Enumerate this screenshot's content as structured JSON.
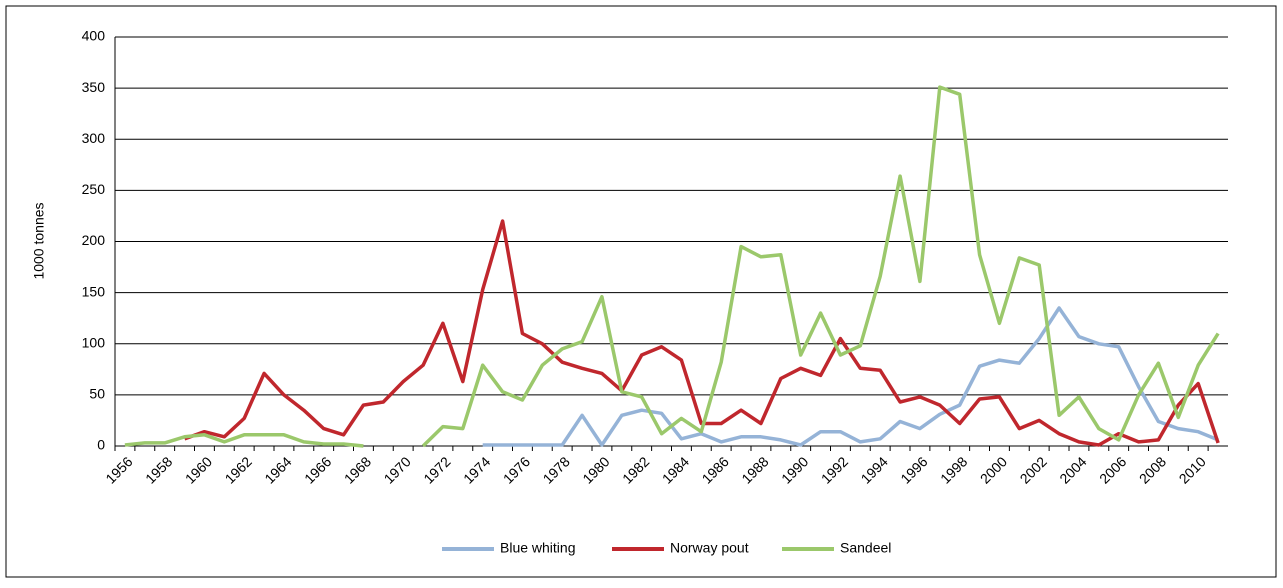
{
  "chart_data": {
    "type": "line",
    "categories": [
      1956,
      null,
      1958,
      null,
      1960,
      null,
      1962,
      null,
      1964,
      null,
      1966,
      null,
      1968,
      null,
      1970,
      null,
      1972,
      null,
      1974,
      null,
      1976,
      null,
      1978,
      null,
      1980,
      null,
      1982,
      null,
      1984,
      null,
      1986,
      null,
      1988,
      null,
      1990,
      null,
      1992,
      null,
      1994,
      null,
      1996,
      null,
      1998,
      null,
      2000,
      null,
      2002,
      null,
      2004,
      null,
      2006,
      null,
      2008,
      null,
      2010,
      null
    ],
    "y_label": "1000 tonnes",
    "ylim": [
      0,
      400
    ],
    "yticks": [
      0,
      50,
      100,
      150,
      200,
      250,
      300,
      350,
      400
    ],
    "grid": true,
    "legend": "bottom",
    "series": [
      {
        "name": "Blue whiting",
        "color": "#95b3d7",
        "values": [
          null,
          null,
          null,
          null,
          null,
          null,
          null,
          null,
          null,
          null,
          null,
          null,
          null,
          null,
          null,
          null,
          null,
          null,
          1,
          1,
          1,
          1,
          1,
          30,
          1,
          30,
          35,
          32,
          7,
          12,
          4,
          9,
          9,
          6,
          1,
          14,
          14,
          4,
          7,
          24,
          17,
          31,
          40,
          78,
          84,
          81,
          105,
          135,
          107,
          100,
          97,
          58,
          24,
          17,
          14,
          6
        ]
      },
      {
        "name": "Norway pout",
        "color": "#c0272d",
        "values": [
          null,
          null,
          null,
          7,
          14,
          9,
          27,
          71,
          50,
          35,
          17,
          11,
          40,
          43,
          63,
          79,
          120,
          63,
          153,
          220,
          110,
          100,
          82,
          76,
          71,
          54,
          89,
          97,
          84,
          22,
          22,
          35,
          22,
          66,
          76,
          69,
          105,
          76,
          74,
          43,
          48,
          40,
          22,
          46,
          48,
          17,
          25,
          12,
          4,
          1,
          12,
          4,
          6,
          40,
          61,
          3
        ]
      },
      {
        "name": "Sandeel",
        "color": "#9bc86b",
        "values": [
          1,
          3,
          3,
          9,
          11,
          4,
          11,
          11,
          11,
          4,
          2,
          2,
          0,
          null,
          null,
          0,
          19,
          17,
          79,
          53,
          45,
          79,
          95,
          102,
          146,
          53,
          48,
          12,
          27,
          14,
          82,
          195,
          185,
          187,
          89,
          130,
          89,
          98,
          166,
          264,
          161,
          351,
          344,
          187,
          120,
          184,
          177,
          30,
          48,
          17,
          6,
          50,
          81,
          28,
          79,
          110
        ]
      }
    ]
  }
}
